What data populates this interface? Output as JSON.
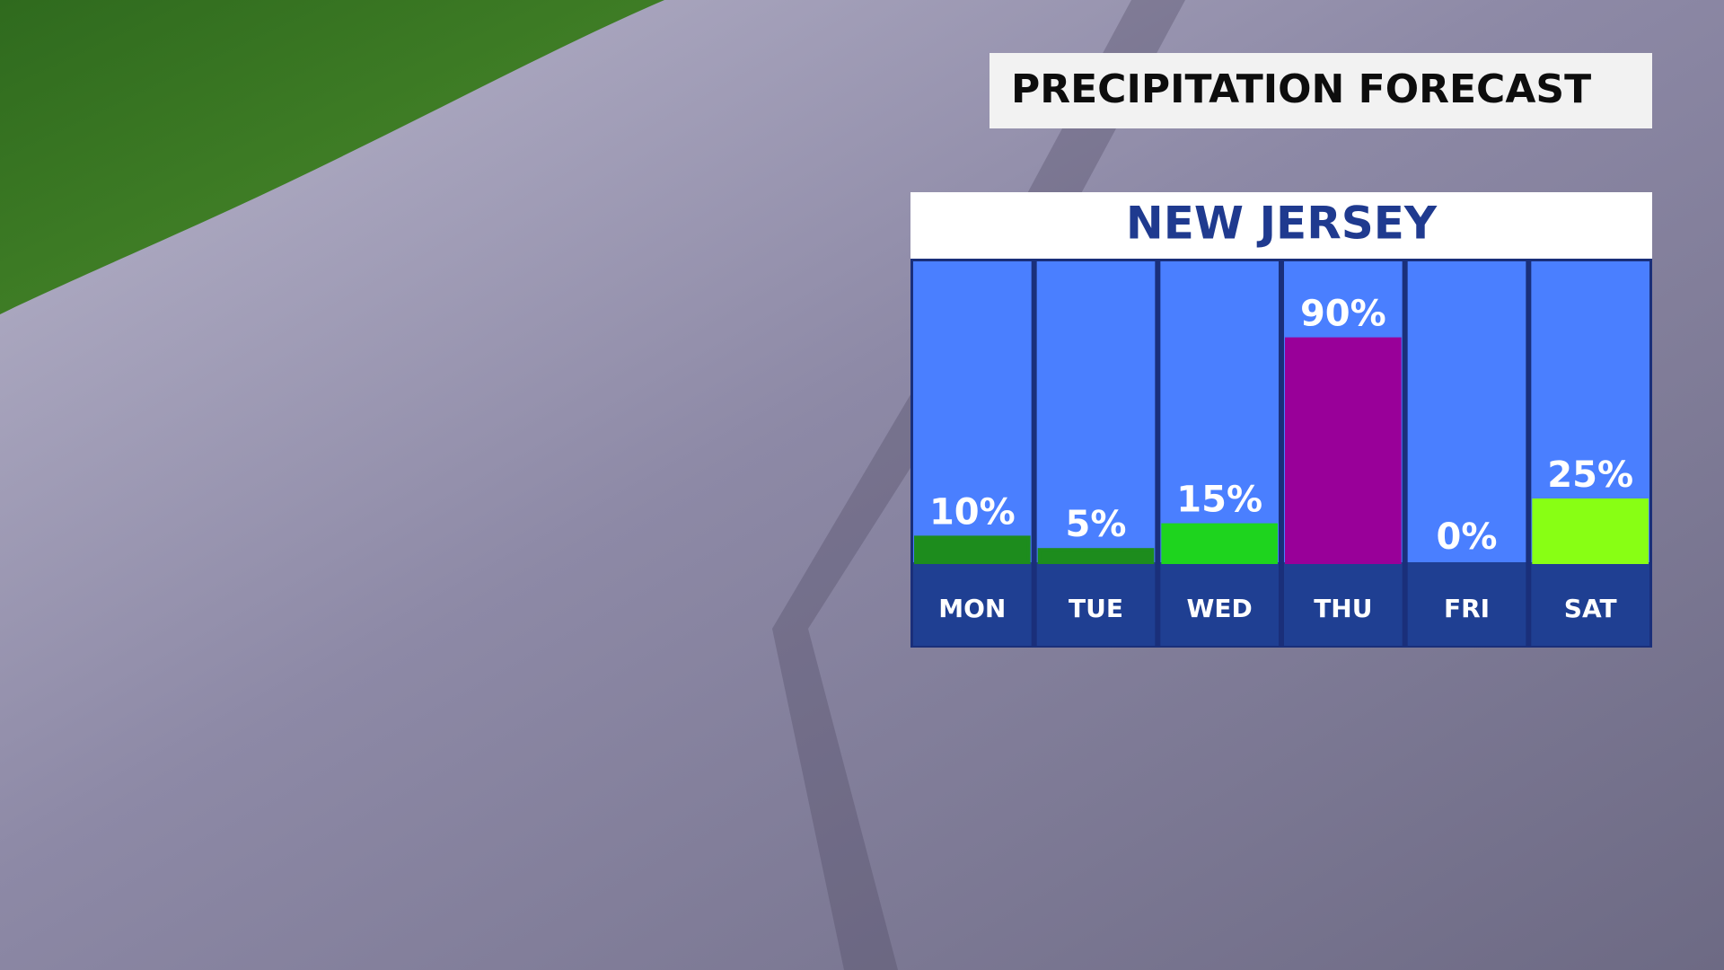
{
  "chart_data": {
    "type": "bar",
    "title": "PRECIPITATION FORECAST",
    "subtitle": "NEW JERSEY",
    "categories": [
      "MON",
      "TUE",
      "WED",
      "THU",
      "FRI",
      "SAT"
    ],
    "values": [
      10,
      5,
      15,
      90,
      0,
      25
    ],
    "value_labels": [
      "10%",
      "5%",
      "15%",
      "90%",
      "0%",
      "25%"
    ],
    "colors": [
      "#1d8c1d",
      "#1d8c1d",
      "#1ed41e",
      "#990099",
      "#ffffff",
      "#88ff14"
    ],
    "ylim": [
      0,
      100
    ]
  }
}
